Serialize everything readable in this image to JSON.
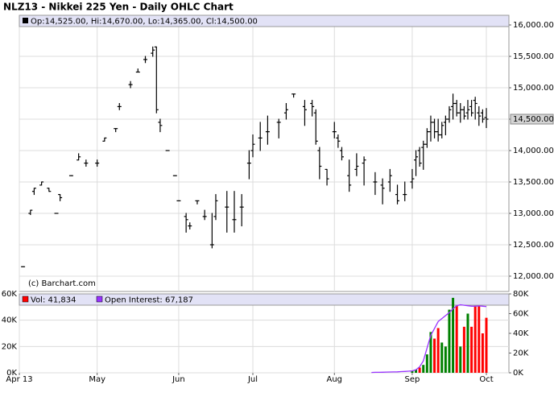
{
  "chart_data": {
    "type": "ohlc",
    "title": "NLZ13 - Nikkei 225 Yen - Daily OHLC Chart",
    "header_label": "Op:14,525.00, Hi:14,670.00, Lo:14,365.00, Cl:14,500.00",
    "annotation": "(c) Barchart.com",
    "last_price": {
      "value": 14500,
      "label": "14,500.00"
    },
    "bar_color": "#000000",
    "grid": true,
    "categories": [
      "Apr 13",
      null,
      null,
      null,
      null,
      null,
      null,
      null,
      null,
      null,
      null,
      null,
      null,
      null,
      null,
      null,
      null,
      null,
      null,
      null,
      null,
      "May",
      null,
      null,
      null,
      null,
      null,
      null,
      null,
      null,
      null,
      null,
      null,
      null,
      null,
      null,
      null,
      null,
      null,
      null,
      null,
      null,
      null,
      "Jun",
      null,
      null,
      null,
      null,
      null,
      null,
      null,
      null,
      null,
      null,
      null,
      null,
      null,
      null,
      null,
      null,
      null,
      null,
      null,
      "Jul",
      null,
      null,
      null,
      null,
      null,
      null,
      null,
      null,
      null,
      null,
      null,
      null,
      null,
      null,
      null,
      null,
      null,
      null,
      null,
      null,
      null,
      "Aug",
      null,
      null,
      null,
      null,
      null,
      null,
      null,
      null,
      null,
      null,
      null,
      null,
      null,
      null,
      null,
      null,
      null,
      null,
      null,
      null,
      "Sep",
      null,
      null,
      null,
      null,
      null,
      null,
      null,
      null,
      null,
      null,
      null,
      null,
      null,
      null,
      null,
      null,
      null,
      null,
      null,
      "Oct"
    ],
    "open": [
      null,
      12150,
      null,
      13000,
      13350,
      null,
      13450,
      null,
      13400,
      null,
      13000,
      13300,
      null,
      null,
      13600,
      null,
      13850,
      null,
      13800,
      null,
      null,
      13800,
      null,
      14150,
      null,
      null,
      14350,
      14700,
      null,
      null,
      15050,
      null,
      15250,
      null,
      15450,
      null,
      15550,
      15650,
      14450,
      null,
      14000,
      null,
      13600,
      13200,
      null,
      12950,
      12800,
      null,
      13200,
      null,
      12950,
      null,
      12500,
      12950,
      null,
      null,
      13100,
      null,
      12900,
      null,
      13100,
      null,
      13800,
      14000,
      null,
      14200,
      null,
      14300,
      null,
      null,
      14450,
      null,
      14600,
      null,
      14900,
      null,
      null,
      14700,
      null,
      14750,
      14600,
      14000,
      null,
      13700,
      null,
      14300,
      14200,
      14000,
      null,
      13600,
      null,
      13700,
      null,
      13800,
      null,
      null,
      13500,
      null,
      13450,
      null,
      13500,
      null,
      13300,
      null,
      13300,
      null,
      13500,
      13850,
      14000,
      14050,
      14100,
      14300,
      14450,
      14300,
      14250,
      14450,
      14500,
      14700,
      14750,
      14600,
      14650,
      14600,
      14700,
      14800,
      14600,
      14600,
      14525
    ],
    "high": [
      null,
      12150,
      null,
      13050,
      13400,
      null,
      13500,
      null,
      13400,
      null,
      13000,
      13300,
      null,
      null,
      13600,
      null,
      13950,
      null,
      13850,
      null,
      null,
      13850,
      null,
      14200,
      null,
      null,
      14350,
      14750,
      null,
      null,
      15100,
      null,
      15300,
      null,
      15500,
      null,
      15650,
      15650,
      14500,
      null,
      14000,
      null,
      13600,
      13200,
      null,
      13000,
      12850,
      null,
      13200,
      null,
      13050,
      null,
      13000,
      13300,
      null,
      null,
      13350,
      null,
      13350,
      null,
      13300,
      null,
      14000,
      14250,
      null,
      14450,
      null,
      14550,
      null,
      null,
      14500,
      null,
      14750,
      null,
      14900,
      null,
      null,
      14800,
      null,
      14800,
      14650,
      14050,
      null,
      13700,
      null,
      14450,
      14250,
      14050,
      null,
      13850,
      null,
      13950,
      null,
      13900,
      null,
      null,
      13650,
      null,
      13550,
      null,
      13700,
      null,
      13450,
      null,
      13500,
      null,
      13700,
      14000,
      14050,
      14150,
      14350,
      14550,
      14500,
      14500,
      14450,
      14550,
      14700,
      14900,
      14800,
      14750,
      14700,
      14800,
      14800,
      14850,
      14700,
      14650,
      14670
    ],
    "low": [
      null,
      12150,
      null,
      12980,
      13300,
      null,
      13450,
      null,
      13350,
      null,
      13000,
      13200,
      null,
      null,
      13600,
      null,
      13850,
      null,
      13750,
      null,
      null,
      13750,
      null,
      14150,
      null,
      null,
      14300,
      14650,
      null,
      null,
      15000,
      null,
      15250,
      null,
      15400,
      null,
      15500,
      14600,
      14300,
      null,
      14000,
      null,
      13600,
      13200,
      null,
      12700,
      12750,
      null,
      13150,
      null,
      12900,
      null,
      12450,
      12900,
      null,
      null,
      12700,
      null,
      12700,
      null,
      12800,
      null,
      13550,
      13900,
      null,
      14000,
      null,
      14100,
      null,
      null,
      14200,
      null,
      14500,
      null,
      14850,
      null,
      null,
      14400,
      null,
      14550,
      14100,
      13550,
      null,
      13450,
      null,
      14200,
      14050,
      13850,
      null,
      13350,
      null,
      13600,
      null,
      13450,
      null,
      null,
      13300,
      null,
      13150,
      null,
      13350,
      null,
      13150,
      null,
      13200,
      null,
      13400,
      13600,
      13750,
      13700,
      14050,
      14150,
      14200,
      14150,
      14200,
      14250,
      14450,
      14500,
      14550,
      14450,
      14500,
      14500,
      14550,
      14500,
      14400,
      14450,
      14365
    ],
    "close": [
      null,
      12150,
      null,
      13050,
      13400,
      null,
      13500,
      null,
      13350,
      null,
      13000,
      13250,
      null,
      null,
      13600,
      null,
      13900,
      null,
      13800,
      null,
      null,
      13800,
      null,
      14200,
      null,
      null,
      14350,
      14700,
      null,
      null,
      15050,
      null,
      15250,
      null,
      15450,
      null,
      15600,
      14650,
      14400,
      null,
      14000,
      null,
      13600,
      13200,
      null,
      12900,
      12800,
      null,
      13200,
      null,
      12950,
      null,
      12500,
      13200,
      null,
      null,
      13100,
      null,
      12900,
      null,
      13100,
      null,
      13800,
      14100,
      null,
      14200,
      null,
      14300,
      null,
      null,
      14450,
      null,
      14650,
      null,
      14900,
      null,
      null,
      14650,
      null,
      14700,
      14150,
      13750,
      null,
      13550,
      null,
      14300,
      14150,
      13900,
      null,
      13450,
      null,
      13750,
      null,
      13850,
      null,
      null,
      13500,
      null,
      13400,
      null,
      13600,
      null,
      13200,
      null,
      13300,
      null,
      13550,
      13900,
      13800,
      14100,
      14300,
      14450,
      14300,
      14250,
      14400,
      14500,
      14650,
      14750,
      14600,
      14650,
      14550,
      14650,
      14600,
      14750,
      14550,
      14500,
      14500
    ],
    "ylim": [
      11756,
      16154
    ],
    "yticks": [
      {
        "value": 12000,
        "label": "12,000.00"
      },
      {
        "value": 12500,
        "label": "12,500.00"
      },
      {
        "value": 13000,
        "label": "13,000.00"
      },
      {
        "value": 13500,
        "label": "13,500.00"
      },
      {
        "value": 14000,
        "label": "14,000.00"
      },
      {
        "value": 14500,
        "label": "14,500.00"
      },
      {
        "value": 15000,
        "label": "15,000.00"
      },
      {
        "value": 15500,
        "label": "15,500.00"
      },
      {
        "value": 16000,
        "label": "16,000.00"
      }
    ],
    "vlim": [
      0,
      60000
    ],
    "vticks": [
      {
        "value": 0,
        "label": "0K"
      },
      {
        "value": 20000,
        "label": "20K"
      },
      {
        "value": 40000,
        "label": "40K"
      },
      {
        "value": 60000,
        "label": "60K"
      }
    ],
    "y2lim": [
      0,
      80000
    ],
    "y2ticks": [
      {
        "value": 0,
        "label": "0K"
      },
      {
        "value": 20000,
        "label": "20K"
      },
      {
        "value": 40000,
        "label": "40K"
      },
      {
        "value": 60000,
        "label": "60K"
      },
      {
        "value": 80000,
        "label": "80K"
      }
    ],
    "series": [
      {
        "name": "Vol: 41,834",
        "type": "bar",
        "up_color": "#008000",
        "down_color": "#ff0000",
        "values": [
          null,
          null,
          null,
          null,
          null,
          null,
          null,
          null,
          null,
          null,
          null,
          null,
          null,
          null,
          null,
          null,
          null,
          null,
          null,
          null,
          null,
          null,
          null,
          null,
          null,
          null,
          null,
          null,
          null,
          null,
          null,
          null,
          null,
          null,
          null,
          null,
          null,
          null,
          null,
          null,
          null,
          null,
          null,
          null,
          null,
          null,
          null,
          null,
          null,
          null,
          null,
          null,
          null,
          null,
          null,
          null,
          null,
          null,
          null,
          null,
          null,
          null,
          null,
          null,
          null,
          null,
          null,
          null,
          null,
          null,
          null,
          null,
          null,
          null,
          null,
          null,
          null,
          null,
          null,
          null,
          null,
          null,
          null,
          null,
          null,
          null,
          null,
          null,
          null,
          null,
          null,
          null,
          null,
          null,
          null,
          null,
          null,
          null,
          null,
          null,
          null,
          null,
          null,
          null,
          null,
          null,
          1500,
          2500,
          4000,
          6000,
          14000,
          31000,
          26000,
          34000,
          23000,
          20000,
          48000,
          57000,
          51000,
          20000,
          35000,
          45000,
          35000,
          51000,
          51000,
          30000,
          41834
        ]
      },
      {
        "name": "Open Interest: 67,187",
        "type": "line",
        "axis": "y2",
        "color": "#9933ff",
        "values": [
          null,
          null,
          null,
          null,
          null,
          null,
          null,
          null,
          null,
          null,
          null,
          null,
          null,
          null,
          null,
          null,
          null,
          null,
          null,
          null,
          null,
          null,
          null,
          null,
          null,
          null,
          null,
          null,
          null,
          null,
          null,
          null,
          null,
          null,
          null,
          null,
          null,
          null,
          null,
          null,
          null,
          null,
          null,
          null,
          null,
          null,
          null,
          null,
          null,
          null,
          null,
          null,
          null,
          null,
          null,
          null,
          null,
          null,
          null,
          null,
          null,
          null,
          null,
          null,
          null,
          null,
          null,
          null,
          null,
          null,
          null,
          null,
          null,
          null,
          null,
          null,
          null,
          null,
          null,
          null,
          null,
          null,
          null,
          null,
          null,
          null,
          null,
          null,
          null,
          null,
          null,
          null,
          null,
          null,
          null,
          300,
          500,
          500,
          600,
          700,
          800,
          900,
          1000,
          1200,
          1400,
          1600,
          2000,
          3000,
          6000,
          12000,
          25000,
          38000,
          45000,
          52000,
          55000,
          58000,
          61000,
          65000,
          68000,
          69000,
          68500,
          68000,
          67500,
          67500,
          67800,
          67500,
          67187
        ]
      }
    ]
  }
}
